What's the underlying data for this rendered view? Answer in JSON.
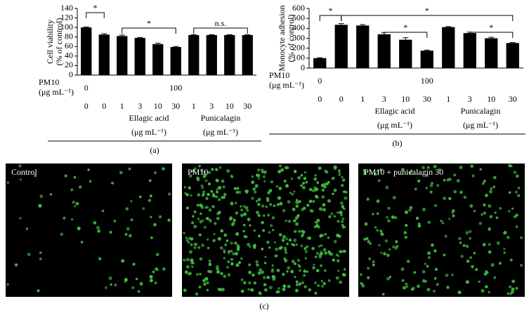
{
  "chart_data": [
    {
      "type": "bar",
      "panel": "(a)",
      "ylabel": [
        "Cell viability",
        "(% of control)"
      ],
      "categories": [
        "0",
        "0",
        "1",
        "3",
        "10",
        "30",
        "1",
        "3",
        "10",
        "30"
      ],
      "values": [
        100,
        85,
        82,
        78,
        65,
        59,
        84,
        84,
        84,
        84
      ],
      "errors": [
        1,
        2,
        2,
        1,
        2,
        1,
        1,
        1,
        1,
        1
      ],
      "color": "#000000",
      "ylim": [
        0,
        140
      ],
      "yticks": [
        0,
        20,
        40,
        60,
        80,
        100,
        120,
        140
      ],
      "pm10": {
        "label": "PM10",
        "unit": "(μg mL⁻¹)",
        "levels": [
          "0",
          "100"
        ]
      },
      "groups": [
        {
          "name": "Ellagic acid",
          "unit": "(μg mL⁻¹)"
        },
        {
          "name": "Punicalagin",
          "unit": "(μg mL⁻¹)"
        }
      ],
      "annotations": [
        "*",
        "*",
        "n.s."
      ]
    },
    {
      "type": "bar",
      "panel": "(b)",
      "ylabel": [
        "Monocyte adhesion",
        "(% of control)"
      ],
      "categories": [
        "0",
        "0",
        "1",
        "3",
        "10",
        "30",
        "1",
        "3",
        "10",
        "30"
      ],
      "values": [
        100,
        435,
        428,
        340,
        285,
        175,
        412,
        352,
        300,
        252
      ],
      "errors": [
        4,
        12,
        10,
        18,
        20,
        6,
        5,
        10,
        10,
        5
      ],
      "color": "#000000",
      "ylim": [
        0,
        600
      ],
      "yticks": [
        0,
        100,
        200,
        300,
        400,
        500,
        600
      ],
      "pm10": {
        "label": "PM10",
        "unit": "(μg mL⁻¹)",
        "levels": [
          "0",
          "100"
        ]
      },
      "groups": [
        {
          "name": "Ellagic acid",
          "unit": "(μg mL⁻¹)"
        },
        {
          "name": "Punicalagin",
          "unit": "(μg mL⁻¹)"
        }
      ],
      "annotations": [
        "*",
        "*",
        "*",
        "*"
      ]
    }
  ],
  "images": {
    "captions": [
      "Control",
      "PM10",
      "PM10 + punicalagin 30"
    ],
    "panel": "(c)"
  }
}
